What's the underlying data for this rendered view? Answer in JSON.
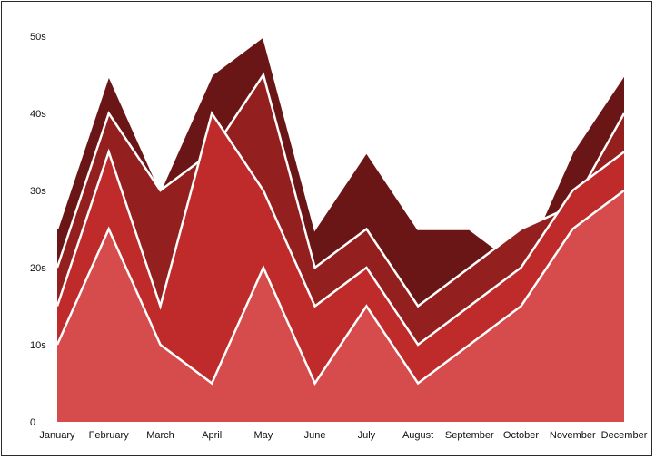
{
  "chart_data": {
    "type": "area",
    "stacked": false,
    "title": "",
    "xlabel": "",
    "ylabel": "",
    "categories": [
      "January",
      "February",
      "March",
      "April",
      "May",
      "June",
      "July",
      "August",
      "September",
      "October",
      "November",
      "December"
    ],
    "ylim": [
      0,
      50
    ],
    "y_ticks": [
      0,
      10,
      20,
      30,
      40,
      50
    ],
    "y_tick_labels": [
      "0",
      "10s",
      "20s",
      "30s",
      "40s",
      "50s"
    ],
    "grid": false,
    "legend": "none",
    "series": [
      {
        "values": [
          10,
          25,
          10,
          5,
          20,
          5,
          15,
          5,
          10,
          15,
          25,
          30
        ],
        "color": "#d64b4b"
      },
      {
        "values": [
          15,
          35,
          15,
          40,
          30,
          15,
          20,
          10,
          15,
          20,
          30,
          35
        ],
        "color": "#bf2a2a"
      },
      {
        "values": [
          20,
          40,
          30,
          35,
          45,
          20,
          25,
          15,
          20,
          25,
          28,
          40
        ],
        "color": "#931f1f"
      },
      {
        "values": [
          25,
          45,
          30,
          45,
          50,
          25,
          35,
          25,
          25,
          20,
          35,
          45
        ],
        "color": "#6b1616"
      }
    ]
  }
}
